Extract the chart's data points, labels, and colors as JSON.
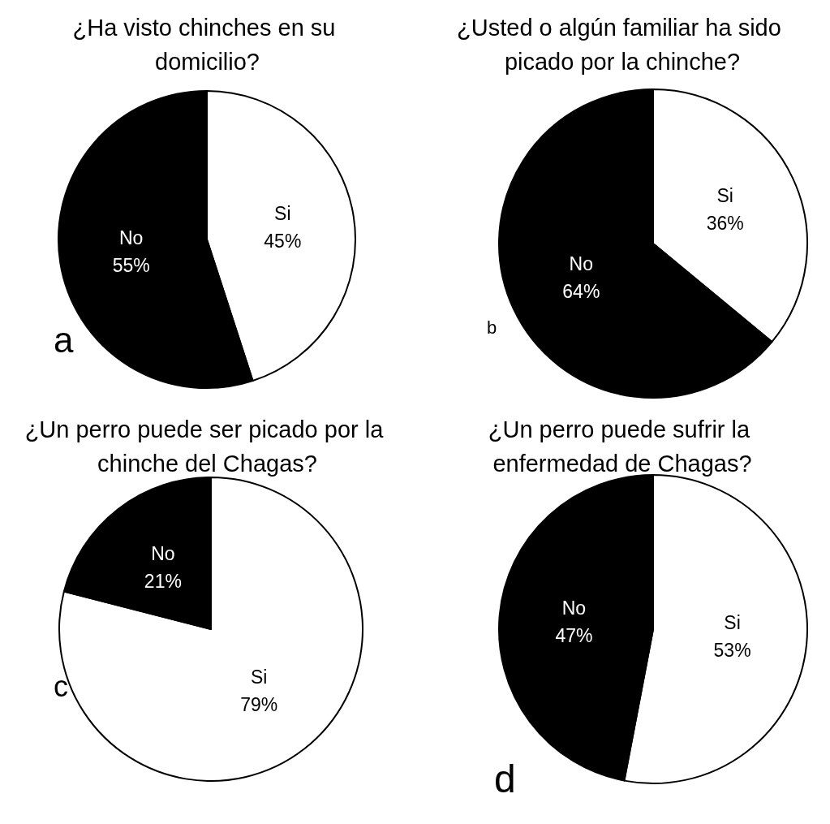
{
  "chart_data": [
    {
      "type": "pie",
      "title": "¿Ha visto chinches en su domicilio?",
      "categories": [
        "Si",
        "No"
      ],
      "values": [
        45,
        55
      ],
      "value_labels": [
        "45%",
        "55%"
      ],
      "colors": [
        "#ffffff",
        "#000000"
      ],
      "annotations": [
        "a"
      ]
    },
    {
      "type": "pie",
      "title": "¿Usted o algún familiar ha sido picado por la chinche?",
      "categories": [
        "Si",
        "No"
      ],
      "values": [
        36,
        64
      ],
      "value_labels": [
        "36%",
        "64%"
      ],
      "colors": [
        "#ffffff",
        "#000000"
      ],
      "annotations": [
        "b"
      ]
    },
    {
      "type": "pie",
      "title": "¿Un perro puede ser picado por la chinche del Chagas?",
      "categories": [
        "Si",
        "No"
      ],
      "values": [
        79,
        21
      ],
      "value_labels": [
        "79%",
        "21%"
      ],
      "colors": [
        "#ffffff",
        "#000000"
      ],
      "annotations": [
        "c"
      ]
    },
    {
      "type": "pie",
      "title": "¿Un perro puede sufrir la enfermedad de Chagas?",
      "categories": [
        "Si",
        "No"
      ],
      "values": [
        53,
        47
      ],
      "value_labels": [
        "53%",
        "47%"
      ],
      "colors": [
        "#ffffff",
        "#000000"
      ],
      "annotations": [
        "d"
      ]
    }
  ]
}
